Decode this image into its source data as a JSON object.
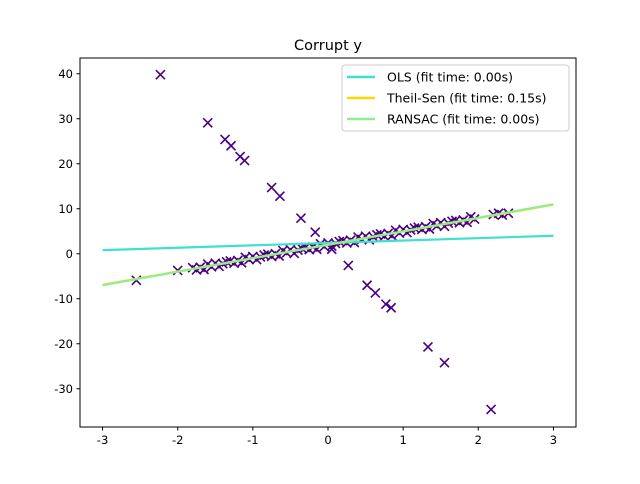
{
  "chart_data": {
    "type": "scatter",
    "title": "Corrupt y",
    "xlabel": "",
    "ylabel": "",
    "xlim": [
      -3.3,
      3.3
    ],
    "ylim": [
      -38.5,
      43.5
    ],
    "xticks": [
      -3,
      -2,
      -1,
      0,
      1,
      2,
      3
    ],
    "yticks": [
      -30,
      -20,
      -10,
      0,
      10,
      20,
      30,
      40
    ],
    "grid": false,
    "legend_position": "top-right",
    "marker_color": "#4b0082",
    "marker": "x",
    "points": [
      [
        -2.55,
        -5.9
      ],
      [
        -2.0,
        -3.7
      ],
      [
        -1.8,
        -3.1
      ],
      [
        -1.75,
        -3.6
      ],
      [
        -1.7,
        -3.0
      ],
      [
        -1.65,
        -3.5
      ],
      [
        -1.6,
        -2.3
      ],
      [
        -1.55,
        -2.9
      ],
      [
        -1.5,
        -2.1
      ],
      [
        -1.45,
        -2.8
      ],
      [
        -1.4,
        -2.2
      ],
      [
        -1.35,
        -1.8
      ],
      [
        -1.3,
        -1.6
      ],
      [
        -1.25,
        -2.1
      ],
      [
        -1.2,
        -1.5
      ],
      [
        -1.15,
        -2.0
      ],
      [
        -1.1,
        -0.8
      ],
      [
        -1.05,
        -1.3
      ],
      [
        -1.0,
        -0.6
      ],
      [
        -0.95,
        -1.3
      ],
      [
        -0.9,
        -0.7
      ],
      [
        -0.85,
        -0.3
      ],
      [
        -0.8,
        -0.1
      ],
      [
        -0.75,
        -0.6
      ],
      [
        -0.7,
        0.0
      ],
      [
        -0.65,
        -0.5
      ],
      [
        -0.6,
        0.7
      ],
      [
        -0.55,
        0.2
      ],
      [
        -0.5,
        0.9
      ],
      [
        -0.45,
        0.1
      ],
      [
        -0.4,
        0.8
      ],
      [
        -0.35,
        1.2
      ],
      [
        -0.3,
        1.4
      ],
      [
        -0.25,
        0.9
      ],
      [
        -0.2,
        1.5
      ],
      [
        -0.15,
        1.0
      ],
      [
        -0.1,
        2.2
      ],
      [
        -0.05,
        1.6
      ],
      [
        0.0,
        2.4
      ],
      [
        0.05,
        1.7
      ],
      [
        0.1,
        2.3
      ],
      [
        0.15,
        2.7
      ],
      [
        0.2,
        2.9
      ],
      [
        0.25,
        2.4
      ],
      [
        0.3,
        3.0
      ],
      [
        0.35,
        2.5
      ],
      [
        0.4,
        3.7
      ],
      [
        0.45,
        3.2
      ],
      [
        0.5,
        3.9
      ],
      [
        0.55,
        3.1
      ],
      [
        0.6,
        3.8
      ],
      [
        0.65,
        4.2
      ],
      [
        0.7,
        4.4
      ],
      [
        0.75,
        3.9
      ],
      [
        0.8,
        4.5
      ],
      [
        0.85,
        4.0
      ],
      [
        0.9,
        5.2
      ],
      [
        0.95,
        4.6
      ],
      [
        1.0,
        5.4
      ],
      [
        1.05,
        4.7
      ],
      [
        1.1,
        5.3
      ],
      [
        1.15,
        5.7
      ],
      [
        1.2,
        5.9
      ],
      [
        1.25,
        5.4
      ],
      [
        1.3,
        6.0
      ],
      [
        1.35,
        5.5
      ],
      [
        1.4,
        6.7
      ],
      [
        1.45,
        6.2
      ],
      [
        1.5,
        6.9
      ],
      [
        1.55,
        6.1
      ],
      [
        1.6,
        6.8
      ],
      [
        1.65,
        7.2
      ],
      [
        1.7,
        7.4
      ],
      [
        1.75,
        6.9
      ],
      [
        1.8,
        7.5
      ],
      [
        1.85,
        7.0
      ],
      [
        1.9,
        8.2
      ],
      [
        1.95,
        7.7
      ],
      [
        2.2,
        8.7
      ],
      [
        2.27,
        9.0
      ],
      [
        2.32,
        8.6
      ],
      [
        2.4,
        9.0
      ],
      [
        -2.23,
        39.8
      ],
      [
        -1.6,
        29.1
      ],
      [
        -1.37,
        25.4
      ],
      [
        -1.29,
        24.0
      ],
      [
        -1.17,
        21.6
      ],
      [
        -1.11,
        20.7
      ],
      [
        -0.75,
        14.7
      ],
      [
        -0.64,
        12.8
      ],
      [
        -0.36,
        7.9
      ],
      [
        -0.17,
        4.8
      ],
      [
        0.05,
        1.0
      ],
      [
        0.27,
        -2.6
      ],
      [
        0.52,
        -7.0
      ],
      [
        0.63,
        -8.7
      ],
      [
        0.77,
        -11.2
      ],
      [
        0.84,
        -12.0
      ],
      [
        1.33,
        -20.7
      ],
      [
        1.55,
        -24.2
      ],
      [
        2.17,
        -34.6
      ]
    ],
    "series": [
      {
        "name": "OLS (fit time: 0.00s)",
        "color": "#40e0d0",
        "x": [
          -3,
          3
        ],
        "y": [
          0.8,
          4.0
        ]
      },
      {
        "name": "Theil-Sen (fit time: 0.15s)",
        "color": "#ffd700",
        "x": [
          -3,
          3
        ],
        "y": [
          -6.9,
          10.9
        ]
      },
      {
        "name": "RANSAC (fit time: 0.00s)",
        "color": "#90ee90",
        "x": [
          -3,
          3
        ],
        "y": [
          -7.0,
          11.0
        ]
      }
    ]
  }
}
